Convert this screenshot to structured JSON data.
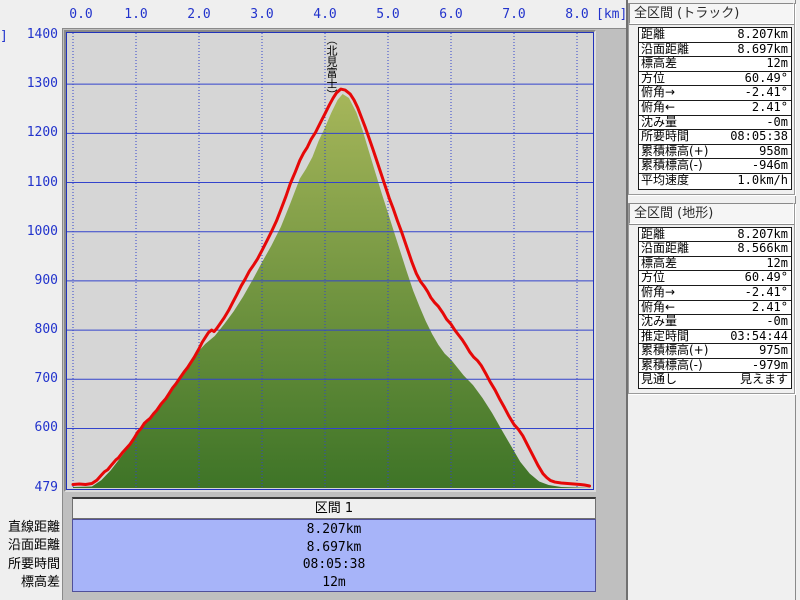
{
  "chart": {
    "x_unit_label": "[km]",
    "y_unit_fragment": "]",
    "peak_label": "（北見富士）"
  },
  "chart_data": {
    "type": "area",
    "title": "",
    "xlabel": "[km]",
    "ylabel": "[m]",
    "xlim": [
      0,
      8.25
    ],
    "ylim": [
      479,
      1400
    ],
    "grid": "on",
    "x_tick_labels": [
      "0.0",
      "1.0",
      "2.0",
      "3.0",
      "4.0",
      "5.0",
      "6.0",
      "7.0",
      "8.0"
    ],
    "x_ticks_km": [
      0,
      1,
      2,
      3,
      4,
      5,
      6,
      7,
      8
    ],
    "y_tick_values": [
      1400,
      1300,
      1200,
      1100,
      1000,
      900,
      800,
      700,
      600,
      479
    ],
    "y_gridlines_m": [
      1300,
      1200,
      1100,
      1000,
      900,
      800,
      700,
      600
    ],
    "baseline_m": 479,
    "annotations": [
      {
        "text": "（北見富士）",
        "x_km": 4.1,
        "y_m": 1290
      }
    ],
    "series": [
      {
        "name": "terrain-profile",
        "type": "area",
        "color_top": "#a6b65a",
        "color_bottom": "#3e7427",
        "points": [
          [
            0.0,
            481
          ],
          [
            0.3,
            482
          ],
          [
            0.45,
            495
          ],
          [
            0.6,
            515
          ],
          [
            0.75,
            540
          ],
          [
            0.9,
            565
          ],
          [
            1.0,
            585
          ],
          [
            1.1,
            602
          ],
          [
            1.25,
            628
          ],
          [
            1.4,
            650
          ],
          [
            1.55,
            678
          ],
          [
            1.7,
            705
          ],
          [
            1.85,
            735
          ],
          [
            2.0,
            758
          ],
          [
            2.1,
            772
          ],
          [
            2.25,
            788
          ],
          [
            2.4,
            812
          ],
          [
            2.55,
            838
          ],
          [
            2.7,
            868
          ],
          [
            2.85,
            902
          ],
          [
            3.0,
            938
          ],
          [
            3.15,
            972
          ],
          [
            3.3,
            1010
          ],
          [
            3.45,
            1058
          ],
          [
            3.6,
            1108
          ],
          [
            3.7,
            1128
          ],
          [
            3.8,
            1152
          ],
          [
            3.9,
            1185
          ],
          [
            4.0,
            1212
          ],
          [
            4.1,
            1242
          ],
          [
            4.2,
            1268
          ],
          [
            4.28,
            1280
          ],
          [
            4.38,
            1272
          ],
          [
            4.5,
            1242
          ],
          [
            4.6,
            1205
          ],
          [
            4.7,
            1162
          ],
          [
            4.8,
            1120
          ],
          [
            4.9,
            1078
          ],
          [
            5.0,
            1038
          ],
          [
            5.1,
            998
          ],
          [
            5.2,
            958
          ],
          [
            5.3,
            918
          ],
          [
            5.4,
            880
          ],
          [
            5.5,
            848
          ],
          [
            5.6,
            818
          ],
          [
            5.7,
            792
          ],
          [
            5.8,
            770
          ],
          [
            5.9,
            752
          ],
          [
            6.0,
            740
          ],
          [
            6.1,
            724
          ],
          [
            6.2,
            708
          ],
          [
            6.35,
            688
          ],
          [
            6.5,
            662
          ],
          [
            6.65,
            632
          ],
          [
            6.8,
            598
          ],
          [
            6.95,
            565
          ],
          [
            7.1,
            532
          ],
          [
            7.25,
            508
          ],
          [
            7.4,
            492
          ],
          [
            7.55,
            485
          ],
          [
            7.75,
            481
          ],
          [
            8.0,
            480
          ],
          [
            8.25,
            479
          ]
        ]
      },
      {
        "name": "gps-track",
        "type": "line",
        "color": "#e60808",
        "points": [
          [
            0.0,
            486
          ],
          [
            0.1,
            487
          ],
          [
            0.2,
            486
          ],
          [
            0.3,
            488
          ],
          [
            0.38,
            495
          ],
          [
            0.45,
            505
          ],
          [
            0.5,
            512
          ],
          [
            0.55,
            516
          ],
          [
            0.62,
            527
          ],
          [
            0.68,
            536
          ],
          [
            0.72,
            540
          ],
          [
            0.78,
            550
          ],
          [
            0.85,
            560
          ],
          [
            0.9,
            567
          ],
          [
            0.97,
            580
          ],
          [
            1.03,
            593
          ],
          [
            1.08,
            600
          ],
          [
            1.13,
            610
          ],
          [
            1.18,
            616
          ],
          [
            1.22,
            620
          ],
          [
            1.28,
            630
          ],
          [
            1.33,
            637
          ],
          [
            1.4,
            650
          ],
          [
            1.47,
            660
          ],
          [
            1.52,
            670
          ],
          [
            1.58,
            682
          ],
          [
            1.63,
            690
          ],
          [
            1.7,
            703
          ],
          [
            1.77,
            716
          ],
          [
            1.82,
            724
          ],
          [
            1.88,
            736
          ],
          [
            1.93,
            746
          ],
          [
            2.0,
            762
          ],
          [
            2.05,
            775
          ],
          [
            2.1,
            785
          ],
          [
            2.15,
            795
          ],
          [
            2.2,
            800
          ],
          [
            2.24,
            797
          ],
          [
            2.28,
            803
          ],
          [
            2.33,
            812
          ],
          [
            2.4,
            825
          ],
          [
            2.47,
            840
          ],
          [
            2.53,
            855
          ],
          [
            2.6,
            872
          ],
          [
            2.67,
            890
          ],
          [
            2.73,
            903
          ],
          [
            2.8,
            920
          ],
          [
            2.87,
            933
          ],
          [
            2.93,
            945
          ],
          [
            3.0,
            962
          ],
          [
            3.08,
            982
          ],
          [
            3.15,
            1000
          ],
          [
            3.23,
            1022
          ],
          [
            3.3,
            1045
          ],
          [
            3.38,
            1072
          ],
          [
            3.45,
            1098
          ],
          [
            3.53,
            1122
          ],
          [
            3.6,
            1145
          ],
          [
            3.66,
            1160
          ],
          [
            3.72,
            1172
          ],
          [
            3.78,
            1188
          ],
          [
            3.85,
            1202
          ],
          [
            3.92,
            1220
          ],
          [
            4.0,
            1240
          ],
          [
            4.07,
            1258
          ],
          [
            4.13,
            1272
          ],
          [
            4.18,
            1282
          ],
          [
            4.25,
            1290
          ],
          [
            4.32,
            1288
          ],
          [
            4.4,
            1280
          ],
          [
            4.46,
            1268
          ],
          [
            4.52,
            1252
          ],
          [
            4.58,
            1232
          ],
          [
            4.64,
            1212
          ],
          [
            4.7,
            1190
          ],
          [
            4.76,
            1168
          ],
          [
            4.82,
            1145
          ],
          [
            4.88,
            1122
          ],
          [
            4.95,
            1095
          ],
          [
            5.02,
            1068
          ],
          [
            5.08,
            1048
          ],
          [
            5.15,
            1022
          ],
          [
            5.22,
            998
          ],
          [
            5.3,
            968
          ],
          [
            5.38,
            938
          ],
          [
            5.45,
            915
          ],
          [
            5.52,
            898
          ],
          [
            5.58,
            888
          ],
          [
            5.63,
            878
          ],
          [
            5.68,
            866
          ],
          [
            5.74,
            856
          ],
          [
            5.8,
            848
          ],
          [
            5.87,
            835
          ],
          [
            5.93,
            822
          ],
          [
            6.0,
            812
          ],
          [
            6.06,
            800
          ],
          [
            6.12,
            790
          ],
          [
            6.18,
            780
          ],
          [
            6.24,
            768
          ],
          [
            6.3,
            755
          ],
          [
            6.36,
            745
          ],
          [
            6.42,
            738
          ],
          [
            6.48,
            728
          ],
          [
            6.55,
            712
          ],
          [
            6.62,
            695
          ],
          [
            6.7,
            678
          ],
          [
            6.78,
            658
          ],
          [
            6.85,
            642
          ],
          [
            6.92,
            625
          ],
          [
            7.0,
            608
          ],
          [
            7.07,
            598
          ],
          [
            7.14,
            585
          ],
          [
            7.22,
            565
          ],
          [
            7.3,
            545
          ],
          [
            7.38,
            525
          ],
          [
            7.46,
            508
          ],
          [
            7.52,
            500
          ],
          [
            7.58,
            494
          ],
          [
            7.65,
            491
          ],
          [
            7.75,
            489
          ],
          [
            7.85,
            488
          ],
          [
            7.95,
            487
          ],
          [
            8.05,
            486
          ],
          [
            8.12,
            485
          ],
          [
            8.2,
            483
          ]
        ]
      }
    ]
  },
  "summary_track": {
    "title": "全区間 (トラック)",
    "rows": [
      {
        "label": "距離",
        "value": "8.207km"
      },
      {
        "label": "沿面距離",
        "value": "8.697km"
      },
      {
        "label": "標高差",
        "value": "12m"
      },
      {
        "label": "方位",
        "value": "60.49°"
      },
      {
        "label": "俯角→",
        "value": "-2.41°"
      },
      {
        "label": "俯角←",
        "value": "2.41°"
      },
      {
        "label": "沈み量",
        "value": "-0m"
      },
      {
        "label": "所要時間",
        "value": "08:05:38"
      },
      {
        "label": "累積標高(+)",
        "value": "958m"
      },
      {
        "label": "累積標高(-)",
        "value": "-946m"
      },
      {
        "label": "平均速度",
        "value": "1.0km/h"
      }
    ]
  },
  "summary_terrain": {
    "title": "全区間 (地形)",
    "rows": [
      {
        "label": "距離",
        "value": "8.207km"
      },
      {
        "label": "沿面距離",
        "value": "8.566km"
      },
      {
        "label": "標高差",
        "value": "12m"
      },
      {
        "label": "方位",
        "value": "60.49°"
      },
      {
        "label": "俯角→",
        "value": "-2.41°"
      },
      {
        "label": "俯角←",
        "value": "2.41°"
      },
      {
        "label": "沈み量",
        "value": "-0m"
      },
      {
        "label": "推定時間",
        "value": "03:54:44"
      },
      {
        "label": "累積標高(+)",
        "value": "975m"
      },
      {
        "label": "累積標高(-)",
        "value": "-979m"
      },
      {
        "label": "見通し",
        "value": "見えます"
      }
    ]
  },
  "section_table": {
    "title": "区間 1",
    "row_labels": [
      "直線距離",
      "沿面距離",
      "所要時間",
      "標高差"
    ],
    "values": [
      "8.207km",
      "8.697km",
      "08:05:38",
      "12m"
    ]
  },
  "colors": {
    "plot_bg": "#d6d6d6",
    "grid_blue": "#3344cc",
    "track_red": "#e60808",
    "terrain_green_top": "#a6b65a",
    "terrain_green_bottom": "#3e7427",
    "section_values_bg": "#a7b4f9",
    "panel_bg": "#f0f0f0",
    "shell_gray": "#bfbfbf"
  }
}
